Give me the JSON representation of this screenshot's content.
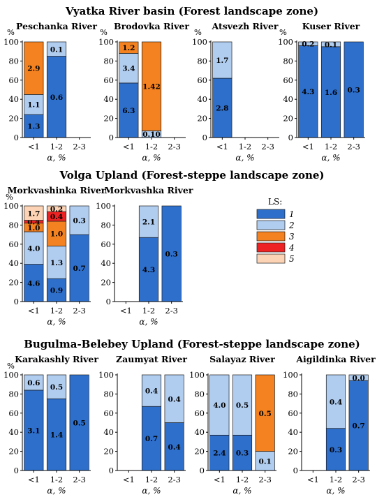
{
  "colors": {
    "ls1": "#2e6fcc",
    "ls2": "#b0cdf0",
    "ls3": "#f58220",
    "ls4": "#ee2222",
    "ls5": "#fcd3b4"
  },
  "sections": [
    {
      "title": "Vyatka River basin (Forest landscape zone)"
    },
    {
      "title": "Volga Upland (Forest-steppe landscape zone)"
    },
    {
      "title": "Bugulma-Belebey Upland (Forest-steppe landscape zone)"
    }
  ],
  "legend": {
    "title": "LS:",
    "items": [
      "1",
      "2",
      "3",
      "4",
      "5"
    ]
  },
  "chart_data": [
    {
      "type": "bar",
      "stacked": true,
      "title": "Peschanka River",
      "ylabel": "%",
      "xlabel": "α, %",
      "categories": [
        "<1",
        "1-2",
        "2-3"
      ],
      "ylim": [
        0,
        100
      ],
      "yticks": [
        0,
        20,
        40,
        60,
        80,
        100
      ],
      "bars": [
        {
          "category": "<1",
          "segments": [
            {
              "ls": 1,
              "pct": 24,
              "label": "1.3"
            },
            {
              "ls": 2,
              "pct": 21,
              "label": "1.1"
            },
            {
              "ls": 3,
              "pct": 55,
              "label": "2.9"
            }
          ]
        },
        {
          "category": "1-2",
          "segments": [
            {
              "ls": 1,
              "pct": 85,
              "label": "0.6"
            },
            {
              "ls": 2,
              "pct": 15,
              "label": "0.1"
            }
          ]
        },
        {
          "category": "2-3",
          "segments": []
        }
      ]
    },
    {
      "type": "bar",
      "stacked": true,
      "title": "Brodovka River",
      "ylabel": "%",
      "xlabel": "α, %",
      "categories": [
        "<1",
        "1-2",
        "2-3"
      ],
      "ylim": [
        0,
        100
      ],
      "yticks": [
        0,
        20,
        40,
        60,
        80,
        100
      ],
      "bars": [
        {
          "category": "<1",
          "segments": [
            {
              "ls": 1,
              "pct": 57,
              "label": "6.3"
            },
            {
              "ls": 2,
              "pct": 31,
              "label": "3.4"
            },
            {
              "ls": 3,
              "pct": 12,
              "label": "1.2"
            }
          ]
        },
        {
          "category": "1-2",
          "segments": [
            {
              "ls": 2,
              "pct": 7,
              "label": "0.10"
            },
            {
              "ls": 3,
              "pct": 93,
              "label": "1.42"
            }
          ]
        },
        {
          "category": "2-3",
          "segments": []
        }
      ]
    },
    {
      "type": "bar",
      "stacked": true,
      "title": "Atsvezh River",
      "ylabel": "%",
      "xlabel": "α, %",
      "categories": [
        "<1",
        "1-2",
        "2-3"
      ],
      "ylim": [
        0,
        100
      ],
      "yticks": [
        0,
        20,
        40,
        60,
        80,
        100
      ],
      "bars": [
        {
          "category": "<1",
          "segments": [
            {
              "ls": 1,
              "pct": 62,
              "label": "2.8"
            },
            {
              "ls": 2,
              "pct": 38,
              "label": "1.7"
            }
          ]
        },
        {
          "category": "1-2",
          "segments": []
        },
        {
          "category": "2-3",
          "segments": []
        }
      ]
    },
    {
      "type": "bar",
      "stacked": true,
      "title": "Kuser River",
      "ylabel": "%",
      "xlabel": "α, %",
      "categories": [
        "<1",
        "1-2",
        "2-3"
      ],
      "ylim": [
        0,
        100
      ],
      "yticks": [
        0,
        20,
        40,
        60,
        80,
        100
      ],
      "bars": [
        {
          "category": "<1",
          "segments": [
            {
              "ls": 1,
              "pct": 96,
              "label": "4.3"
            },
            {
              "ls": 2,
              "pct": 4,
              "label": "0.2"
            }
          ]
        },
        {
          "category": "1-2",
          "segments": [
            {
              "ls": 1,
              "pct": 95,
              "label": "1.6"
            },
            {
              "ls": 2,
              "pct": 5,
              "label": "0.1"
            }
          ]
        },
        {
          "category": "2-3",
          "segments": [
            {
              "ls": 1,
              "pct": 100,
              "label": "0.3"
            }
          ]
        }
      ]
    },
    {
      "type": "bar",
      "stacked": true,
      "title": "Morkvashinka River",
      "ylabel": "%",
      "xlabel": "α, %",
      "categories": [
        "<1",
        "1-2",
        "2-3"
      ],
      "ylim": [
        0,
        100
      ],
      "yticks": [
        0,
        20,
        40,
        60,
        80,
        100
      ],
      "bars": [
        {
          "category": "<1",
          "segments": [
            {
              "ls": 1,
              "pct": 39,
              "label": "4.6"
            },
            {
              "ls": 2,
              "pct": 34,
              "label": "4.0"
            },
            {
              "ls": 3,
              "pct": 9,
              "label": "1.0"
            },
            {
              "ls": 4,
              "pct": 3,
              "label": "0.4"
            },
            {
              "ls": 5,
              "pct": 15,
              "label": "1.7"
            }
          ]
        },
        {
          "category": "1-2",
          "segments": [
            {
              "ls": 1,
              "pct": 24,
              "label": "0.9"
            },
            {
              "ls": 2,
              "pct": 34,
              "label": "1.3"
            },
            {
              "ls": 3,
              "pct": 26,
              "label": "1.0"
            },
            {
              "ls": 4,
              "pct": 10,
              "label": "0.4"
            },
            {
              "ls": 5,
              "pct": 6,
              "label": "0.2"
            }
          ]
        },
        {
          "category": "2-3",
          "segments": [
            {
              "ls": 1,
              "pct": 70,
              "label": "0.7"
            },
            {
              "ls": 2,
              "pct": 30,
              "label": "0.3"
            }
          ]
        }
      ]
    },
    {
      "type": "bar",
      "stacked": true,
      "title": "Morkvashka River",
      "ylabel": "",
      "xlabel": "α, %",
      "categories": [
        "<1",
        "1-2",
        "2-3"
      ],
      "ylim": [
        0,
        100
      ],
      "yticks": [
        0,
        20,
        40,
        60,
        80,
        100
      ],
      "bars": [
        {
          "category": "<1",
          "segments": []
        },
        {
          "category": "1-2",
          "segments": [
            {
              "ls": 1,
              "pct": 67,
              "label": "4.3"
            },
            {
              "ls": 2,
              "pct": 33,
              "label": "2.1"
            }
          ]
        },
        {
          "category": "2-3",
          "segments": [
            {
              "ls": 1,
              "pct": 100,
              "label": "0.3"
            }
          ]
        }
      ]
    },
    {
      "type": "bar",
      "stacked": true,
      "title": "Karakashly River",
      "ylabel": "%",
      "xlabel": "α, %",
      "categories": [
        "<1",
        "1-2",
        "2-3"
      ],
      "ylim": [
        0,
        100
      ],
      "yticks": [
        0,
        20,
        40,
        60,
        80,
        100
      ],
      "bars": [
        {
          "category": "<1",
          "segments": [
            {
              "ls": 1,
              "pct": 84,
              "label": "3.1"
            },
            {
              "ls": 2,
              "pct": 16,
              "label": "0.6"
            }
          ]
        },
        {
          "category": "1-2",
          "segments": [
            {
              "ls": 1,
              "pct": 75,
              "label": "1.4"
            },
            {
              "ls": 2,
              "pct": 25,
              "label": "0.5"
            }
          ]
        },
        {
          "category": "2-3",
          "segments": [
            {
              "ls": 1,
              "pct": 100,
              "label": "0.5"
            }
          ]
        }
      ]
    },
    {
      "type": "bar",
      "stacked": true,
      "title": "Zaumyat River",
      "ylabel": "",
      "xlabel": "α, %",
      "categories": [
        "<1",
        "1-2",
        "2-3"
      ],
      "ylim": [
        0,
        100
      ],
      "yticks": [
        0,
        20,
        40,
        60,
        80,
        100
      ],
      "bars": [
        {
          "category": "<1",
          "segments": []
        },
        {
          "category": "1-2",
          "segments": [
            {
              "ls": 1,
              "pct": 67,
              "label": "0.7"
            },
            {
              "ls": 2,
              "pct": 33,
              "label": "0.4"
            }
          ]
        },
        {
          "category": "2-3",
          "segments": [
            {
              "ls": 1,
              "pct": 50,
              "label": "0.4"
            },
            {
              "ls": 2,
              "pct": 50,
              "label": "0.4"
            }
          ]
        }
      ]
    },
    {
      "type": "bar",
      "stacked": true,
      "title": "Salayaz River",
      "ylabel": "",
      "xlabel": "α, %",
      "categories": [
        "<1",
        "1-2",
        "2-3"
      ],
      "ylim": [
        0,
        100
      ],
      "yticks": [
        0,
        20,
        40,
        60,
        80,
        100
      ],
      "bars": [
        {
          "category": "<1",
          "segments": [
            {
              "ls": 1,
              "pct": 37,
              "label": "2.4"
            },
            {
              "ls": 2,
              "pct": 63,
              "label": "4.0"
            }
          ]
        },
        {
          "category": "1-2",
          "segments": [
            {
              "ls": 1,
              "pct": 37,
              "label": "0.3"
            },
            {
              "ls": 2,
              "pct": 63,
              "label": "0.5"
            }
          ]
        },
        {
          "category": "2-3",
          "segments": [
            {
              "ls": 2,
              "pct": 20,
              "label": "0.1"
            },
            {
              "ls": 3,
              "pct": 80,
              "label": "0.5"
            }
          ]
        }
      ]
    },
    {
      "type": "bar",
      "stacked": true,
      "title": "Aigildinka River",
      "ylabel": "",
      "xlabel": "α, %",
      "categories": [
        "<1",
        "1-2",
        "2-3"
      ],
      "ylim": [
        0,
        100
      ],
      "yticks": [
        0,
        20,
        40,
        60,
        80,
        100
      ],
      "bars": [
        {
          "category": "<1",
          "segments": []
        },
        {
          "category": "1-2",
          "segments": [
            {
              "ls": 1,
              "pct": 44,
              "label": "0.3"
            },
            {
              "ls": 2,
              "pct": 56,
              "label": "0.4"
            }
          ]
        },
        {
          "category": "2-3",
          "segments": [
            {
              "ls": 1,
              "pct": 94,
              "label": "0.7"
            },
            {
              "ls": 2,
              "pct": 6,
              "label": "0.0"
            }
          ]
        }
      ]
    }
  ]
}
